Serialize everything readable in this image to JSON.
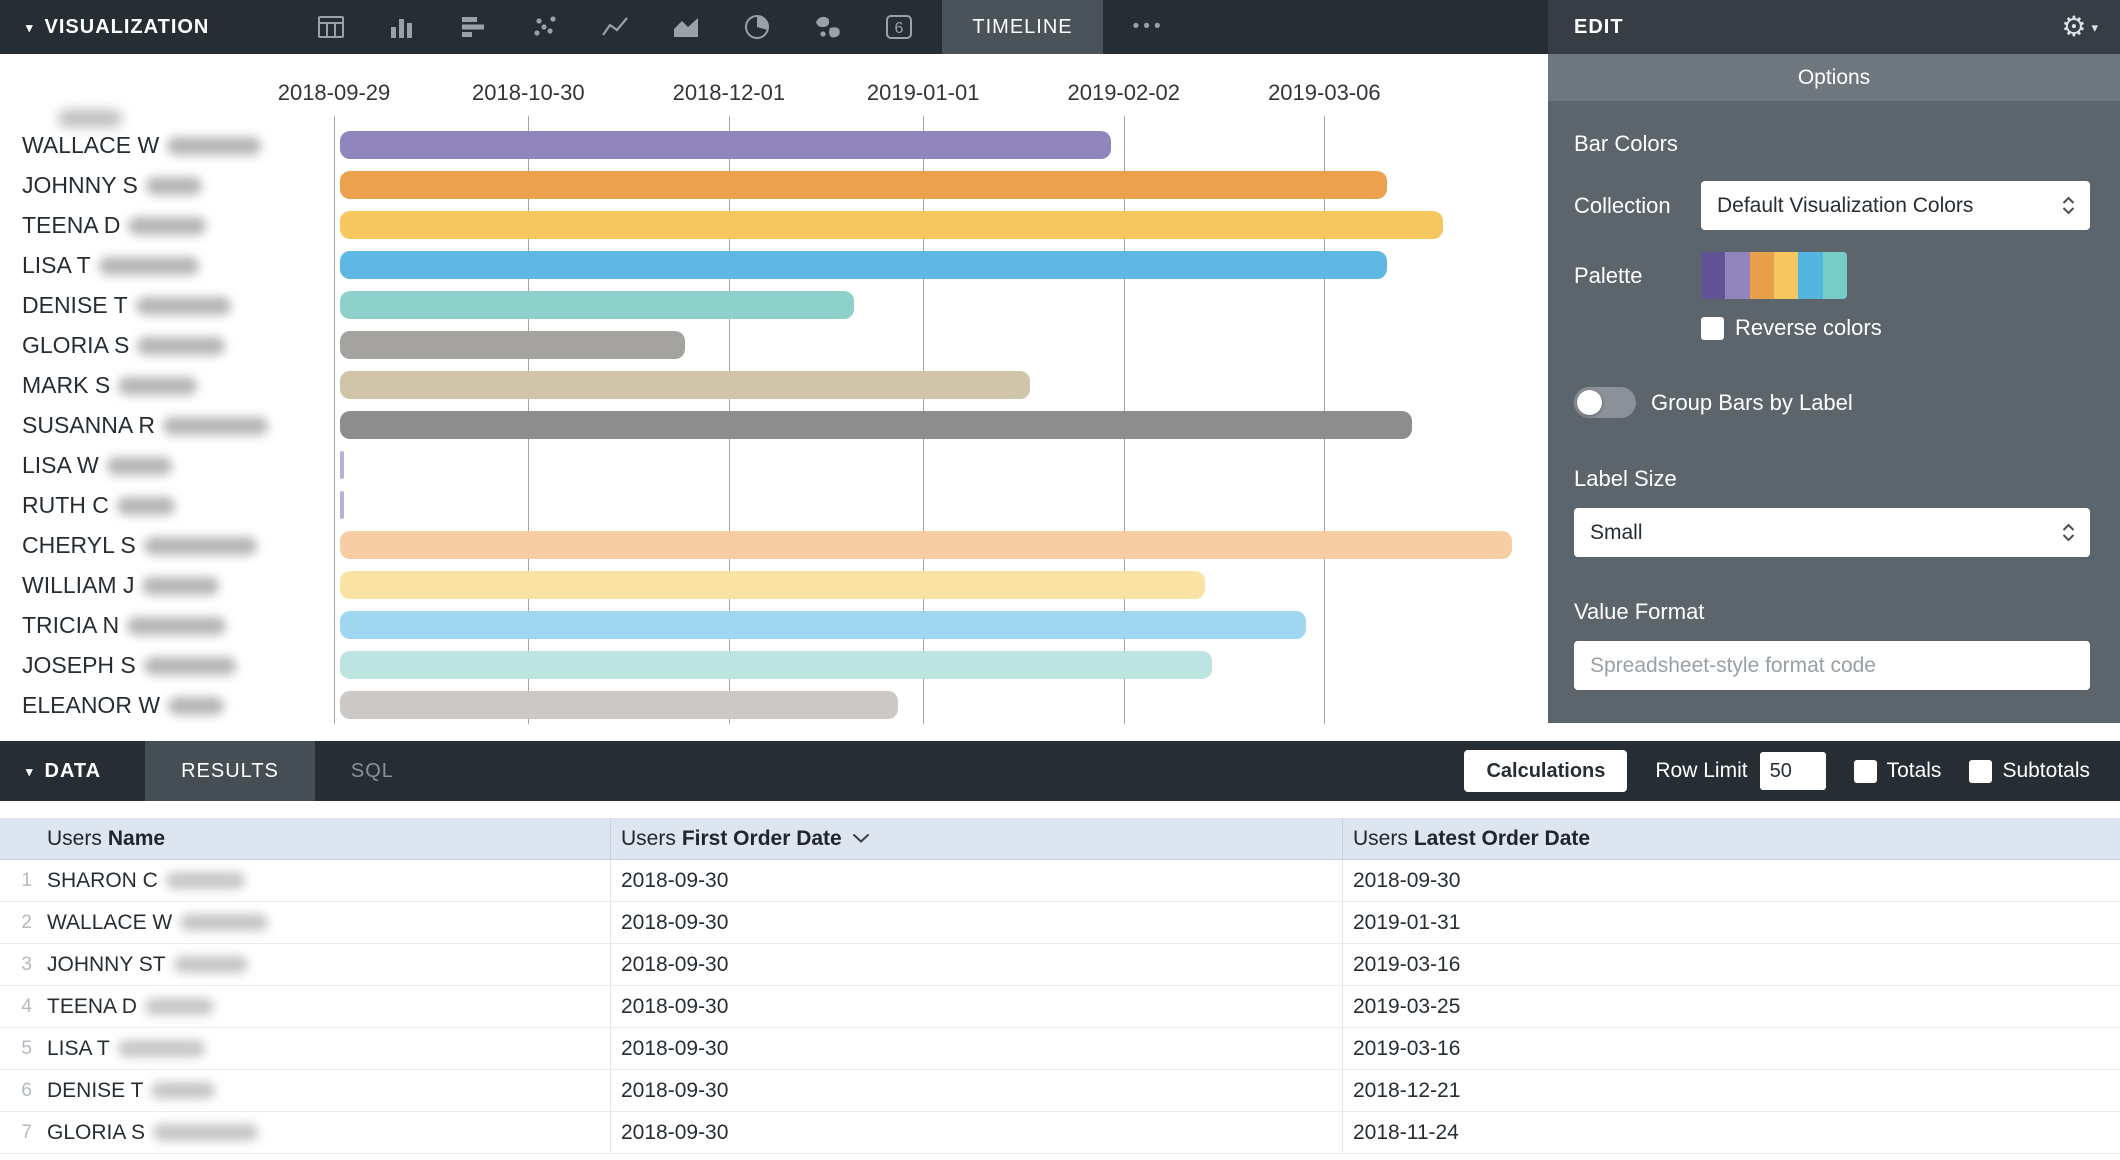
{
  "toolbar": {
    "title": "VISUALIZATION",
    "caret_icon": "▾",
    "viz_types": [
      "table",
      "column",
      "bar",
      "scatter",
      "line",
      "area",
      "pie",
      "map",
      "single-value",
      "timeline"
    ],
    "single_value_glyph": "6",
    "timeline_tab": "TIMELINE",
    "more_icon": "•••"
  },
  "edit_panel": {
    "title": "EDIT",
    "gear_icon": "⚙",
    "caret_icon": "▾",
    "tab_label": "Options",
    "bar_colors_heading": "Bar Colors",
    "collection_label": "Collection",
    "collection_value": "Default Visualization Colors",
    "palette_label": "Palette",
    "palette_colors": [
      "#605396",
      "#9185be",
      "#ea9f4b",
      "#f6c85f",
      "#52b6e0",
      "#77ccc8"
    ],
    "reverse_colors_label": "Reverse colors",
    "reverse_colors_checked": false,
    "group_bars_label": "Group Bars by Label",
    "group_bars_on": false,
    "label_size_label": "Label Size",
    "label_size_value": "Small",
    "value_format_label": "Value Format",
    "value_format_placeholder": "Spreadsheet-style format code",
    "value_format_value": ""
  },
  "chart_data": {
    "type": "timeline",
    "axis_start": "2018-09-29",
    "tick_labels": [
      "2018-09-29",
      "2018-10-30",
      "2018-12-01",
      "2019-01-01",
      "2019-02-02",
      "2019-03-06"
    ],
    "rows": [
      {
        "name": "WALLACE W",
        "start": "2018-09-30",
        "end": "2019-01-31",
        "color": "#9185be"
      },
      {
        "name": "JOHNNY S",
        "start": "2018-09-30",
        "end": "2019-03-16",
        "color": "#eca14f"
      },
      {
        "name": "TEENA D",
        "start": "2018-09-30",
        "end": "2019-03-25",
        "color": "#f6c75e"
      },
      {
        "name": "LISA T",
        "start": "2018-09-30",
        "end": "2019-03-16",
        "color": "#5fb7e3"
      },
      {
        "name": "DENISE T",
        "start": "2018-09-30",
        "end": "2018-12-21",
        "color": "#8ed1cb"
      },
      {
        "name": "GLORIA S",
        "start": "2018-09-30",
        "end": "2018-11-24",
        "color": "#a5a3a0"
      },
      {
        "name": "MARK S",
        "start": "2018-09-30",
        "end": "2019-01-18",
        "color": "#d0c5a9"
      },
      {
        "name": "SUSANNA R",
        "start": "2018-09-30",
        "end": "2019-03-20",
        "color": "#8d8d8d"
      },
      {
        "name": "LISA W",
        "start": "2018-09-30",
        "end": "2018-09-30",
        "color": "#b7b0d6"
      },
      {
        "name": "RUTH C",
        "start": "2018-09-30",
        "end": "2018-09-30",
        "color": "#b7b0d6"
      },
      {
        "name": "CHERYL S",
        "start": "2018-09-30",
        "end": "2019-04-05",
        "color": "#f7cda4"
      },
      {
        "name": "WILLIAM J",
        "start": "2018-09-30",
        "end": "2019-02-15",
        "color": "#fae2a5"
      },
      {
        "name": "TRICIA N",
        "start": "2018-09-30",
        "end": "2019-03-03",
        "color": "#9ed7ef"
      },
      {
        "name": "JOSEPH S",
        "start": "2018-09-30",
        "end": "2019-02-16",
        "color": "#bce4e0"
      },
      {
        "name": "ELEANOR W",
        "start": "2018-09-30",
        "end": "2018-12-28",
        "color": "#cbc8c5"
      }
    ]
  },
  "data_panel": {
    "title": "DATA",
    "caret_icon": "▾",
    "results_tab": "RESULTS",
    "sql_tab": "SQL",
    "calculations_label": "Calculations",
    "row_limit_label": "Row Limit",
    "row_limit_value": "50",
    "totals_label": "Totals",
    "subtotals_label": "Subtotals"
  },
  "table": {
    "columns": [
      {
        "prefix": "Users",
        "label": "Name"
      },
      {
        "prefix": "Users",
        "label": "First Order Date",
        "sorted": true
      },
      {
        "prefix": "Users",
        "label": "Latest Order Date"
      }
    ],
    "rows": [
      {
        "num": 1,
        "name": "SHARON C",
        "first": "2018-09-30",
        "latest": "2018-09-30"
      },
      {
        "num": 2,
        "name": "WALLACE W",
        "first": "2018-09-30",
        "latest": "2019-01-31"
      },
      {
        "num": 3,
        "name": "JOHNNY ST",
        "first": "2018-09-30",
        "latest": "2019-03-16"
      },
      {
        "num": 4,
        "name": "TEENA D",
        "first": "2018-09-30",
        "latest": "2019-03-25"
      },
      {
        "num": 5,
        "name": "LISA T",
        "first": "2018-09-30",
        "latest": "2019-03-16"
      },
      {
        "num": 6,
        "name": "DENISE T",
        "first": "2018-09-30",
        "latest": "2018-12-21"
      },
      {
        "num": 7,
        "name": "GLORIA S",
        "first": "2018-09-30",
        "latest": "2018-11-24"
      }
    ]
  }
}
